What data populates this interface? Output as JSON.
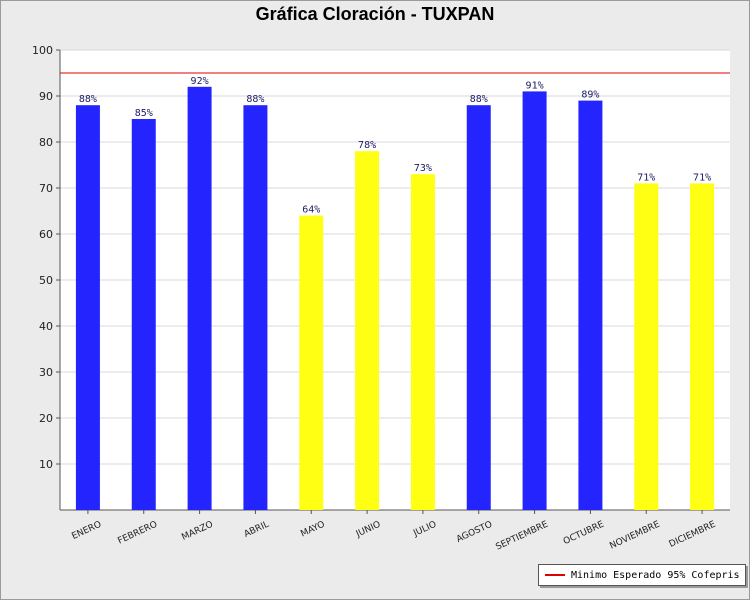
{
  "chart_data": {
    "type": "bar",
    "title": "Gráfica Cloración - TUXPAN",
    "categories": [
      "ENERO",
      "FEBRERO",
      "MARZO",
      "ABRIL",
      "MAYO",
      "JUNIO",
      "JULIO",
      "AGOSTO",
      "SEPTIEMBRE",
      "OCTUBRE",
      "NOVIEMBRE",
      "DICIEMBRE"
    ],
    "values": [
      88,
      85,
      92,
      88,
      64,
      78,
      73,
      88,
      91,
      89,
      71,
      71
    ],
    "data_labels": [
      "88%",
      "85%",
      "92%",
      "88%",
      "64%",
      "78%",
      "73%",
      "88%",
      "91%",
      "89%",
      "71%",
      "71%"
    ],
    "bar_colors": [
      "#2424ff",
      "#2424ff",
      "#2424ff",
      "#2424ff",
      "#ffff14",
      "#ffff14",
      "#ffff14",
      "#2424ff",
      "#2424ff",
      "#2424ff",
      "#ffff14",
      "#ffff14"
    ],
    "ylim": [
      0,
      100
    ],
    "yticks": [
      "10",
      "20",
      "30",
      "40",
      "50",
      "60",
      "70",
      "80",
      "90",
      "100"
    ],
    "grid": true,
    "reference_line": {
      "value": 95,
      "color": "#e00000",
      "label": "Minimo Esperado 95% Cofepris"
    },
    "legend_position": "bottom-right"
  }
}
